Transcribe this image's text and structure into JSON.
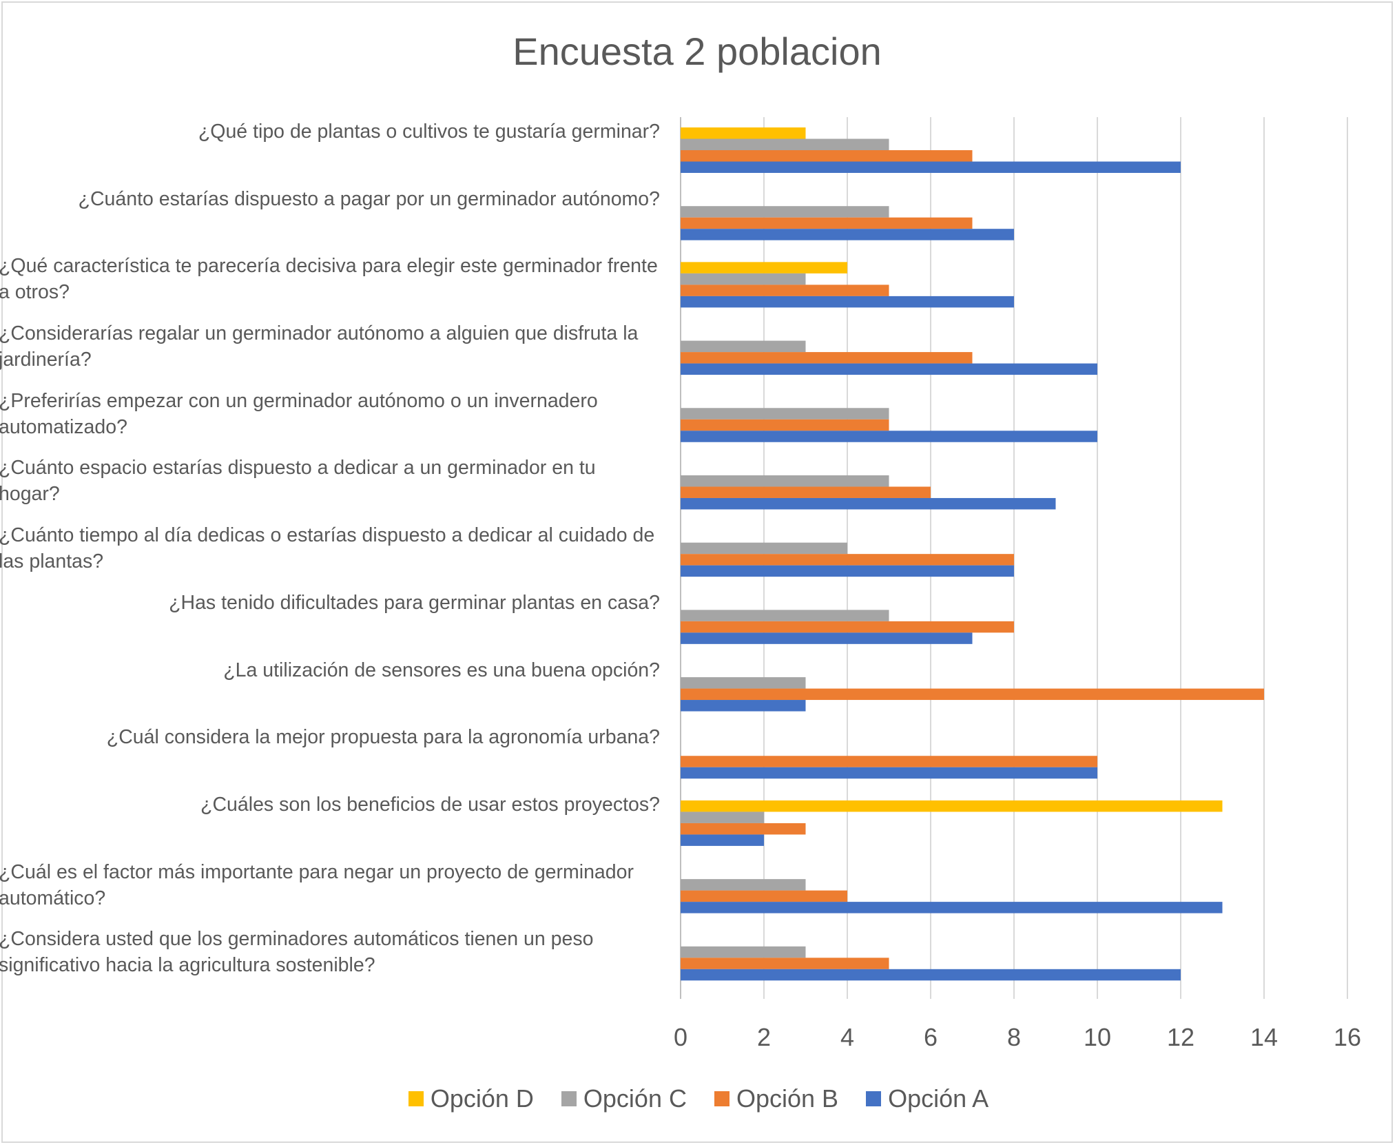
{
  "chart_data": {
    "type": "bar",
    "orientation": "horizontal",
    "title": "Encuesta 2 poblacion",
    "xlabel": "",
    "ylabel": "",
    "xlim": [
      0,
      16
    ],
    "xticks": [
      "0",
      "2",
      "4",
      "6",
      "8",
      "10",
      "12",
      "14",
      "16"
    ],
    "grid": true,
    "legend_position": "bottom",
    "categories": [
      "¿Qué tipo de plantas o cultivos te gustaría germinar?",
      "¿Cuánto estarías dispuesto a pagar por un germinador autónomo?",
      "¿Qué característica te parecería decisiva para elegir este germinador frente a otros?",
      "¿Considerarías regalar un germinador autónomo a alguien que disfruta la jardinería?",
      "¿Preferirías empezar con un germinador autónomo o un invernadero automatizado?",
      "¿Cuánto espacio estarías dispuesto a dedicar a un germinador en tu hogar?",
      "¿Cuánto tiempo al día dedicas o estarías dispuesto a dedicar al cuidado de las plantas?",
      "¿Has tenido dificultades para germinar plantas en casa?",
      "¿La utilización de sensores es una buena opción?",
      "¿Cuál considera la mejor propuesta para la agronomía urbana?",
      "¿Cuáles son los beneficios de usar estos proyectos?",
      "¿Cuál es el factor más importante para negar un proyecto de germinador automático?",
      "¿Considera usted que los germinadores automáticos tienen un peso significativo hacia la agricultura sostenible?"
    ],
    "series": [
      {
        "name": "Opción D",
        "color": "#ffc000",
        "values": [
          3,
          0,
          4,
          0,
          0,
          0,
          0,
          0,
          0,
          0,
          13,
          0,
          0
        ]
      },
      {
        "name": "Opción C",
        "color": "#a5a5a5",
        "values": [
          5,
          5,
          3,
          3,
          5,
          5,
          4,
          5,
          3,
          0,
          2,
          3,
          3
        ]
      },
      {
        "name": "Opción B",
        "color": "#ed7d31",
        "values": [
          7,
          7,
          5,
          7,
          5,
          6,
          8,
          8,
          14,
          10,
          3,
          4,
          5
        ]
      },
      {
        "name": "Opción A",
        "color": "#4472c4",
        "values": [
          12,
          8,
          8,
          10,
          10,
          9,
          8,
          7,
          3,
          10,
          2,
          13,
          12
        ]
      }
    ]
  }
}
